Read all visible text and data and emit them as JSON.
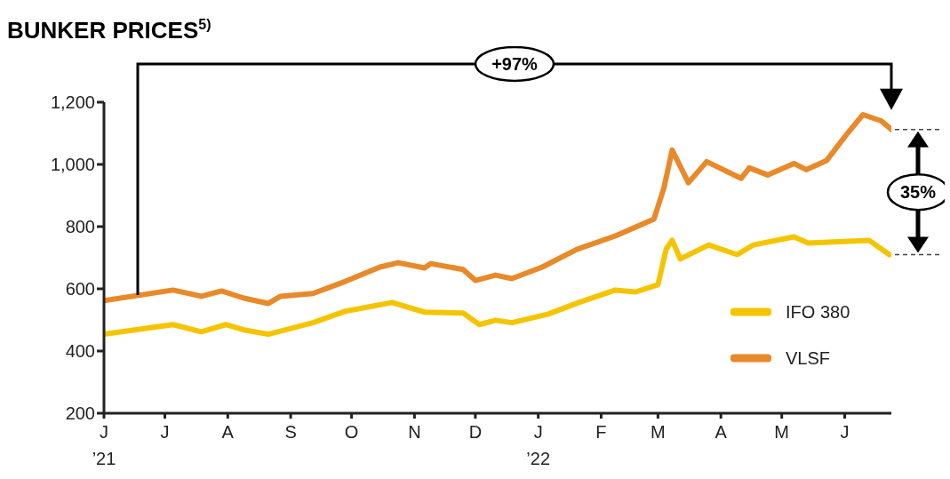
{
  "chart_data": {
    "type": "line",
    "title": "BUNKER PRICES$^{5)}$",
    "xlim": [
      "2021-06-01",
      "2022-06-24"
    ],
    "xticks": [
      {
        "value": "2021-06-01",
        "label": "J\n’21"
      },
      {
        "value": "2021-07-01",
        "label": "J"
      },
      {
        "value": "2021-08-01",
        "label": "A"
      },
      {
        "value": "2021-09-01",
        "label": "S"
      },
      {
        "value": "2021-10-01",
        "label": "O"
      },
      {
        "value": "2021-11-01",
        "label": "N"
      },
      {
        "value": "2021-12-01",
        "label": "D"
      },
      {
        "value": "2022-01-01",
        "label": "J\n’22"
      },
      {
        "value": "2022-02-01",
        "label": "F"
      },
      {
        "value": "2022-03-01",
        "label": "M"
      },
      {
        "value": "2022-04-01",
        "label": "A"
      },
      {
        "value": "2022-05-01",
        "label": "M"
      },
      {
        "value": "2022-06-01",
        "label": "J"
      }
    ],
    "ylim": [
      200,
      1200
    ],
    "yticks": [
      {
        "value": 200,
        "label": "200"
      },
      {
        "value": 400,
        "label": "400"
      },
      {
        "value": 600,
        "label": "600"
      },
      {
        "value": 800,
        "label": "800"
      },
      {
        "value": 1000,
        "label": "1,000"
      },
      {
        "value": 1200,
        "label": "1,200"
      }
    ],
    "grid": false,
    "legend": "right",
    "line_style": "solid",
    "marker": "none",
    "annotations": [
      "+97%",
      "35%"
    ],
    "series": [
      {
        "name": "IFO 380",
        "color": "#f5c400",
        "x": [
          "2021-06-01",
          "2021-07-05",
          "2021-07-19",
          "2021-07-31",
          "2021-08-09",
          "2021-08-21",
          "2021-09-12",
          "2021-09-28",
          "2021-10-21",
          "2021-11-06",
          "2021-11-25",
          "2021-12-03",
          "2021-12-11",
          "2021-12-19",
          "2022-01-06",
          "2022-01-21",
          "2022-02-08",
          "2022-02-18",
          "2022-03-01",
          "2022-03-05",
          "2022-03-08",
          "2022-03-12",
          "2022-03-26",
          "2022-04-09",
          "2022-04-17",
          "2022-05-07",
          "2022-05-14",
          "2022-06-13",
          "2022-06-23"
        ],
        "values": [
          454,
          485,
          462,
          485,
          468,
          454,
          491,
          528,
          556,
          525,
          522,
          485,
          499,
          491,
          519,
          556,
          596,
          590,
          613,
          727,
          756,
          696,
          741,
          710,
          741,
          767,
          747,
          756,
          710
        ]
      },
      {
        "name": "VLSF",
        "color": "#e8892a",
        "x": [
          "2021-06-01",
          "2021-07-05",
          "2021-07-19",
          "2021-07-29",
          "2021-08-09",
          "2021-08-21",
          "2021-08-27",
          "2021-09-12",
          "2021-09-28",
          "2021-10-15",
          "2021-10-24",
          "2021-11-06",
          "2021-11-09",
          "2021-11-25",
          "2021-12-01",
          "2021-12-11",
          "2021-12-19",
          "2022-01-03",
          "2022-01-20",
          "2022-02-08",
          "2022-02-27",
          "2022-03-04",
          "2022-03-08",
          "2022-03-16",
          "2022-03-25",
          "2022-04-11",
          "2022-04-15",
          "2022-04-24",
          "2022-05-07",
          "2022-05-13",
          "2022-05-23",
          "2022-06-02",
          "2022-06-10",
          "2022-06-19",
          "2022-06-24"
        ],
        "values": [
          562,
          596,
          576,
          593,
          570,
          553,
          576,
          585,
          624,
          670,
          684,
          667,
          681,
          662,
          627,
          644,
          633,
          670,
          727,
          770,
          824,
          926,
          1046,
          941,
          1009,
          955,
          989,
          966,
          1003,
          983,
          1012,
          1097,
          1160,
          1140,
          1112
        ]
      }
    ]
  }
}
